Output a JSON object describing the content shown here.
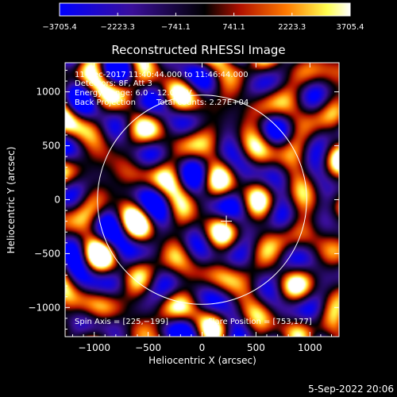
{
  "chart_data": {
    "type": "heatmap",
    "title": "Reconstructed RHESSI Image",
    "xlabel": "Heliocentric X (arcsec)",
    "ylabel": "Heliocentric Y (arcsec)",
    "xlim": [
      -1270,
      1270
    ],
    "ylim": [
      -1270,
      1270
    ],
    "x_ticks": [
      -1000,
      -500,
      0,
      500,
      1000
    ],
    "y_ticks": [
      -1000,
      -500,
      0,
      500,
      1000
    ],
    "x_tick_labels": [
      "−1000",
      "−500",
      "0",
      "500",
      "1000"
    ],
    "y_tick_labels": [
      "−1000",
      "−500",
      "0",
      "500",
      "1000"
    ],
    "colorbar": {
      "min": -3705.4,
      "max": 3705.4,
      "tick_labels": [
        "−3705.4",
        "−2223.3",
        "−741.1",
        "741.1",
        "2223.3",
        "3705.4"
      ],
      "colors": [
        "#0000ff",
        "#3a0f9a",
        "#000000",
        "#b01000",
        "#ff7a00",
        "#ffff50",
        "#ffffff"
      ]
    },
    "annotations": {
      "time_range": "11-Dec-2017 11:40:44.000 to 11:46:44.000",
      "detectors": "Detectors: 8F, Att 3",
      "energy_range": "Energy Range: 6.0 – 12.0 keV",
      "method": "Back Projection",
      "total_counts": "Total counts: 2.27E+04",
      "spin_axis": "Spin Axis = [225,−199]",
      "flare_position": "Flare Position = [753,177]"
    },
    "solar_disk": {
      "center": [
        0,
        0
      ],
      "radius_arcsec": 970
    },
    "spin_axis_xy": [
      225,
      -199
    ],
    "timestamp": "5-Sep-2022 20:06"
  }
}
